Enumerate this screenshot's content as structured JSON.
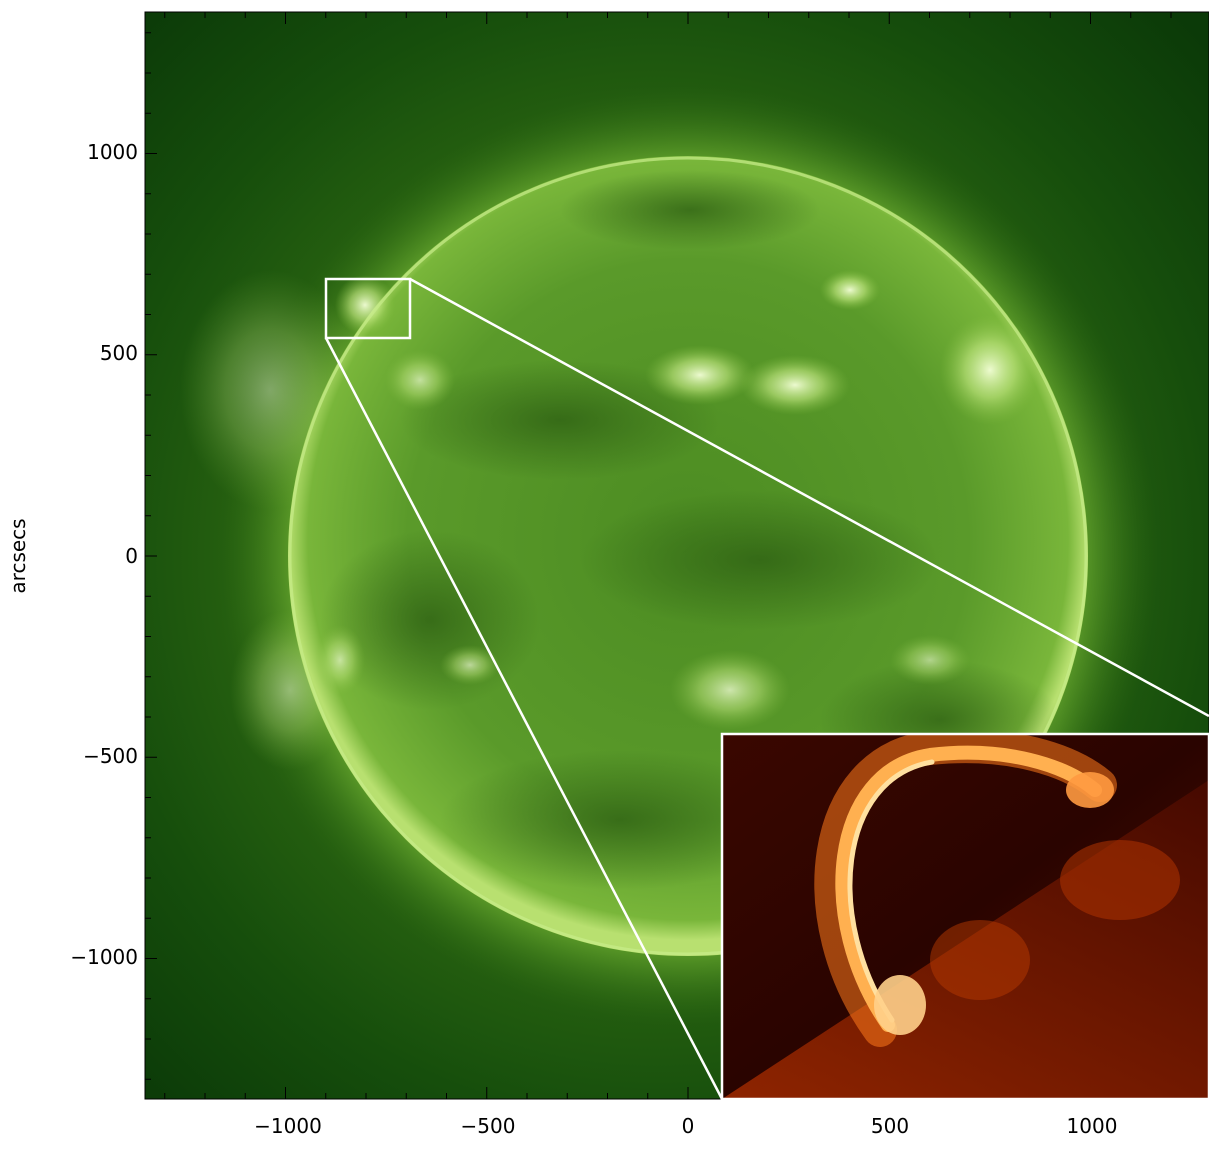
{
  "plot": {
    "y_axis_title": "arcsecs",
    "y_tick_labels": [
      "1000",
      "500",
      "0",
      "−500",
      "−1000"
    ],
    "x_tick_labels": [
      "−1000",
      "−500",
      "0",
      "500",
      "1000"
    ]
  },
  "colors": {
    "panel_background": "#0b3d0b",
    "sun_disk": "#6aa62c",
    "corona_glow": "#4f8f22",
    "zoom_frame": "#ffffff",
    "inset_background": "#2a0500",
    "inset_loop": "#ff9a3a"
  }
}
